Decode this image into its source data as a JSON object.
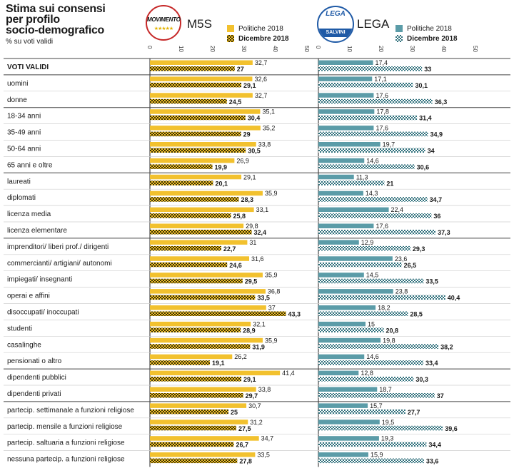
{
  "title": [
    "Stima sui consensi",
    "per profilo",
    "socio-demografico"
  ],
  "subtitle": "% su voti validi",
  "colors": {
    "m5s": "#f2c12e",
    "m5s_check": "#3a3000",
    "lega": "#5b9ca8",
    "lega_check": "#2e6f7b"
  },
  "chart_data": {
    "type": "bar",
    "orientation": "horizontal",
    "panels": [
      {
        "party": "M5S",
        "logo_text": "MOVIMENTO",
        "legend": [
          "Politiche 2018",
          "Dicembre 2018"
        ],
        "xlim": [
          0,
          50
        ],
        "ticks": [
          "0",
          "10",
          "20",
          "30",
          "40",
          "50"
        ],
        "series": [
          {
            "name": "Politiche 2018",
            "values": [
              32.7,
              32.6,
              32.7,
              35.1,
              35.2,
              33.8,
              26.9,
              29.1,
              35.9,
              33.1,
              29.8,
              31,
              31.6,
              35.9,
              36.8,
              37,
              32.1,
              35.9,
              26.2,
              41.4,
              33.8,
              30.7,
              31.2,
              34.7,
              33.5
            ]
          },
          {
            "name": "Dicembre 2018",
            "values": [
              27,
              29.1,
              24.5,
              30.4,
              29,
              30.5,
              19.9,
              20.1,
              28.3,
              25.8,
              32.4,
              22.7,
              24.6,
              29.5,
              33.5,
              43.3,
              28.9,
              31.9,
              19.1,
              29.1,
              29.7,
              25,
              27.5,
              26.7,
              27.8
            ]
          }
        ]
      },
      {
        "party": "LEGA",
        "logo_text": "LEGA",
        "logo_band": "SALVINI",
        "legend": [
          "Politiche 2018",
          "Dicembre 2018"
        ],
        "xlim": [
          0,
          50
        ],
        "ticks": [
          "0",
          "10",
          "20",
          "30",
          "40",
          "50"
        ],
        "series": [
          {
            "name": "Politiche 2018",
            "values": [
              17.4,
              17.1,
              17.6,
              17.8,
              17.6,
              19.7,
              14.6,
              11.3,
              14.3,
              22.4,
              17.6,
              12.9,
              23.6,
              14.5,
              23.8,
              18.2,
              15,
              19.8,
              14.6,
              12.8,
              18.7,
              15.7,
              19.5,
              19.3,
              15.9
            ]
          },
          {
            "name": "Dicembre 2018",
            "values": [
              33,
              30.1,
              36.3,
              31.4,
              34.9,
              34,
              30.6,
              21,
              34.7,
              36,
              37.3,
              29.3,
              26.5,
              33.5,
              40.4,
              28.5,
              20.8,
              38.2,
              33.4,
              30.3,
              37,
              27.7,
              39.6,
              34.4,
              33.6
            ]
          }
        ]
      }
    ],
    "categories": [
      "VOTI VALIDI",
      "uomini",
      "donne",
      "18-34 anni",
      "35-49 anni",
      "50-64 anni",
      "65 anni e oltre",
      "laureati",
      "diplomati",
      "licenza media",
      "licenza elementare",
      "imprenditori/ liberi prof./ dirigenti",
      "commercianti/ artigiani/ autonomi",
      "impiegati/ insegnanti",
      "operai e affini",
      "disoccupati/ inoccupati",
      "studenti",
      "casalinghe",
      "pensionati o altro",
      "dipendenti pubblici",
      "dipendenti privati",
      "partecip. settimanale a funzioni religiose",
      "partecip. mensile a funzioni religiose",
      "partecip. saltuaria a funzioni religiose",
      "nessuna partecip. a funzioni religiose"
    ],
    "value_labels": {
      "m5s_2018": [
        "32,7",
        "32,6",
        "32,7",
        "35,1",
        "35,2",
        "33,8",
        "26,9",
        "29,1",
        "35,9",
        "33,1",
        "29,8",
        "31",
        "31,6",
        "35,9",
        "36,8",
        "37",
        "32,1",
        "35,9",
        "26,2",
        "41,4",
        "33,8",
        "30,7",
        "31,2",
        "34,7",
        "33,5"
      ],
      "m5s_dic": [
        "27",
        "29,1",
        "24,5",
        "30,4",
        "29",
        "30,5",
        "19,9",
        "20,1",
        "28,3",
        "25,8",
        "32,4",
        "22,7",
        "24,6",
        "29,5",
        "33,5",
        "43,3",
        "28,9",
        "31,9",
        "19,1",
        "29,1",
        "29,7",
        "25",
        "27,5",
        "26,7",
        "27,8"
      ],
      "lega_2018": [
        "17,4",
        "17,1",
        "17,6",
        "17,8",
        "17,6",
        "19,7",
        "14,6",
        "11,3",
        "14,3",
        "22,4",
        "17,6",
        "12,9",
        "23,6",
        "14,5",
        "23,8",
        "18,2",
        "15",
        "19,8",
        "14,6",
        "12,8",
        "18,7",
        "15,7",
        "19,5",
        "19,3",
        "15,9"
      ],
      "lega_dic": [
        "33",
        "30,1",
        "36,3",
        "31,4",
        "34,9",
        "34",
        "30,6",
        "21",
        "34,7",
        "36",
        "37,3",
        "29,3",
        "26,5",
        "33,5",
        "40,4",
        "28,5",
        "20,8",
        "38,2",
        "33,4",
        "30,3",
        "37",
        "27,7",
        "39,6",
        "34,4",
        "33,6"
      ]
    },
    "group_separators_after": [
      0,
      2,
      6,
      10,
      18,
      20
    ],
    "grid": false,
    "legend_position": "top"
  }
}
